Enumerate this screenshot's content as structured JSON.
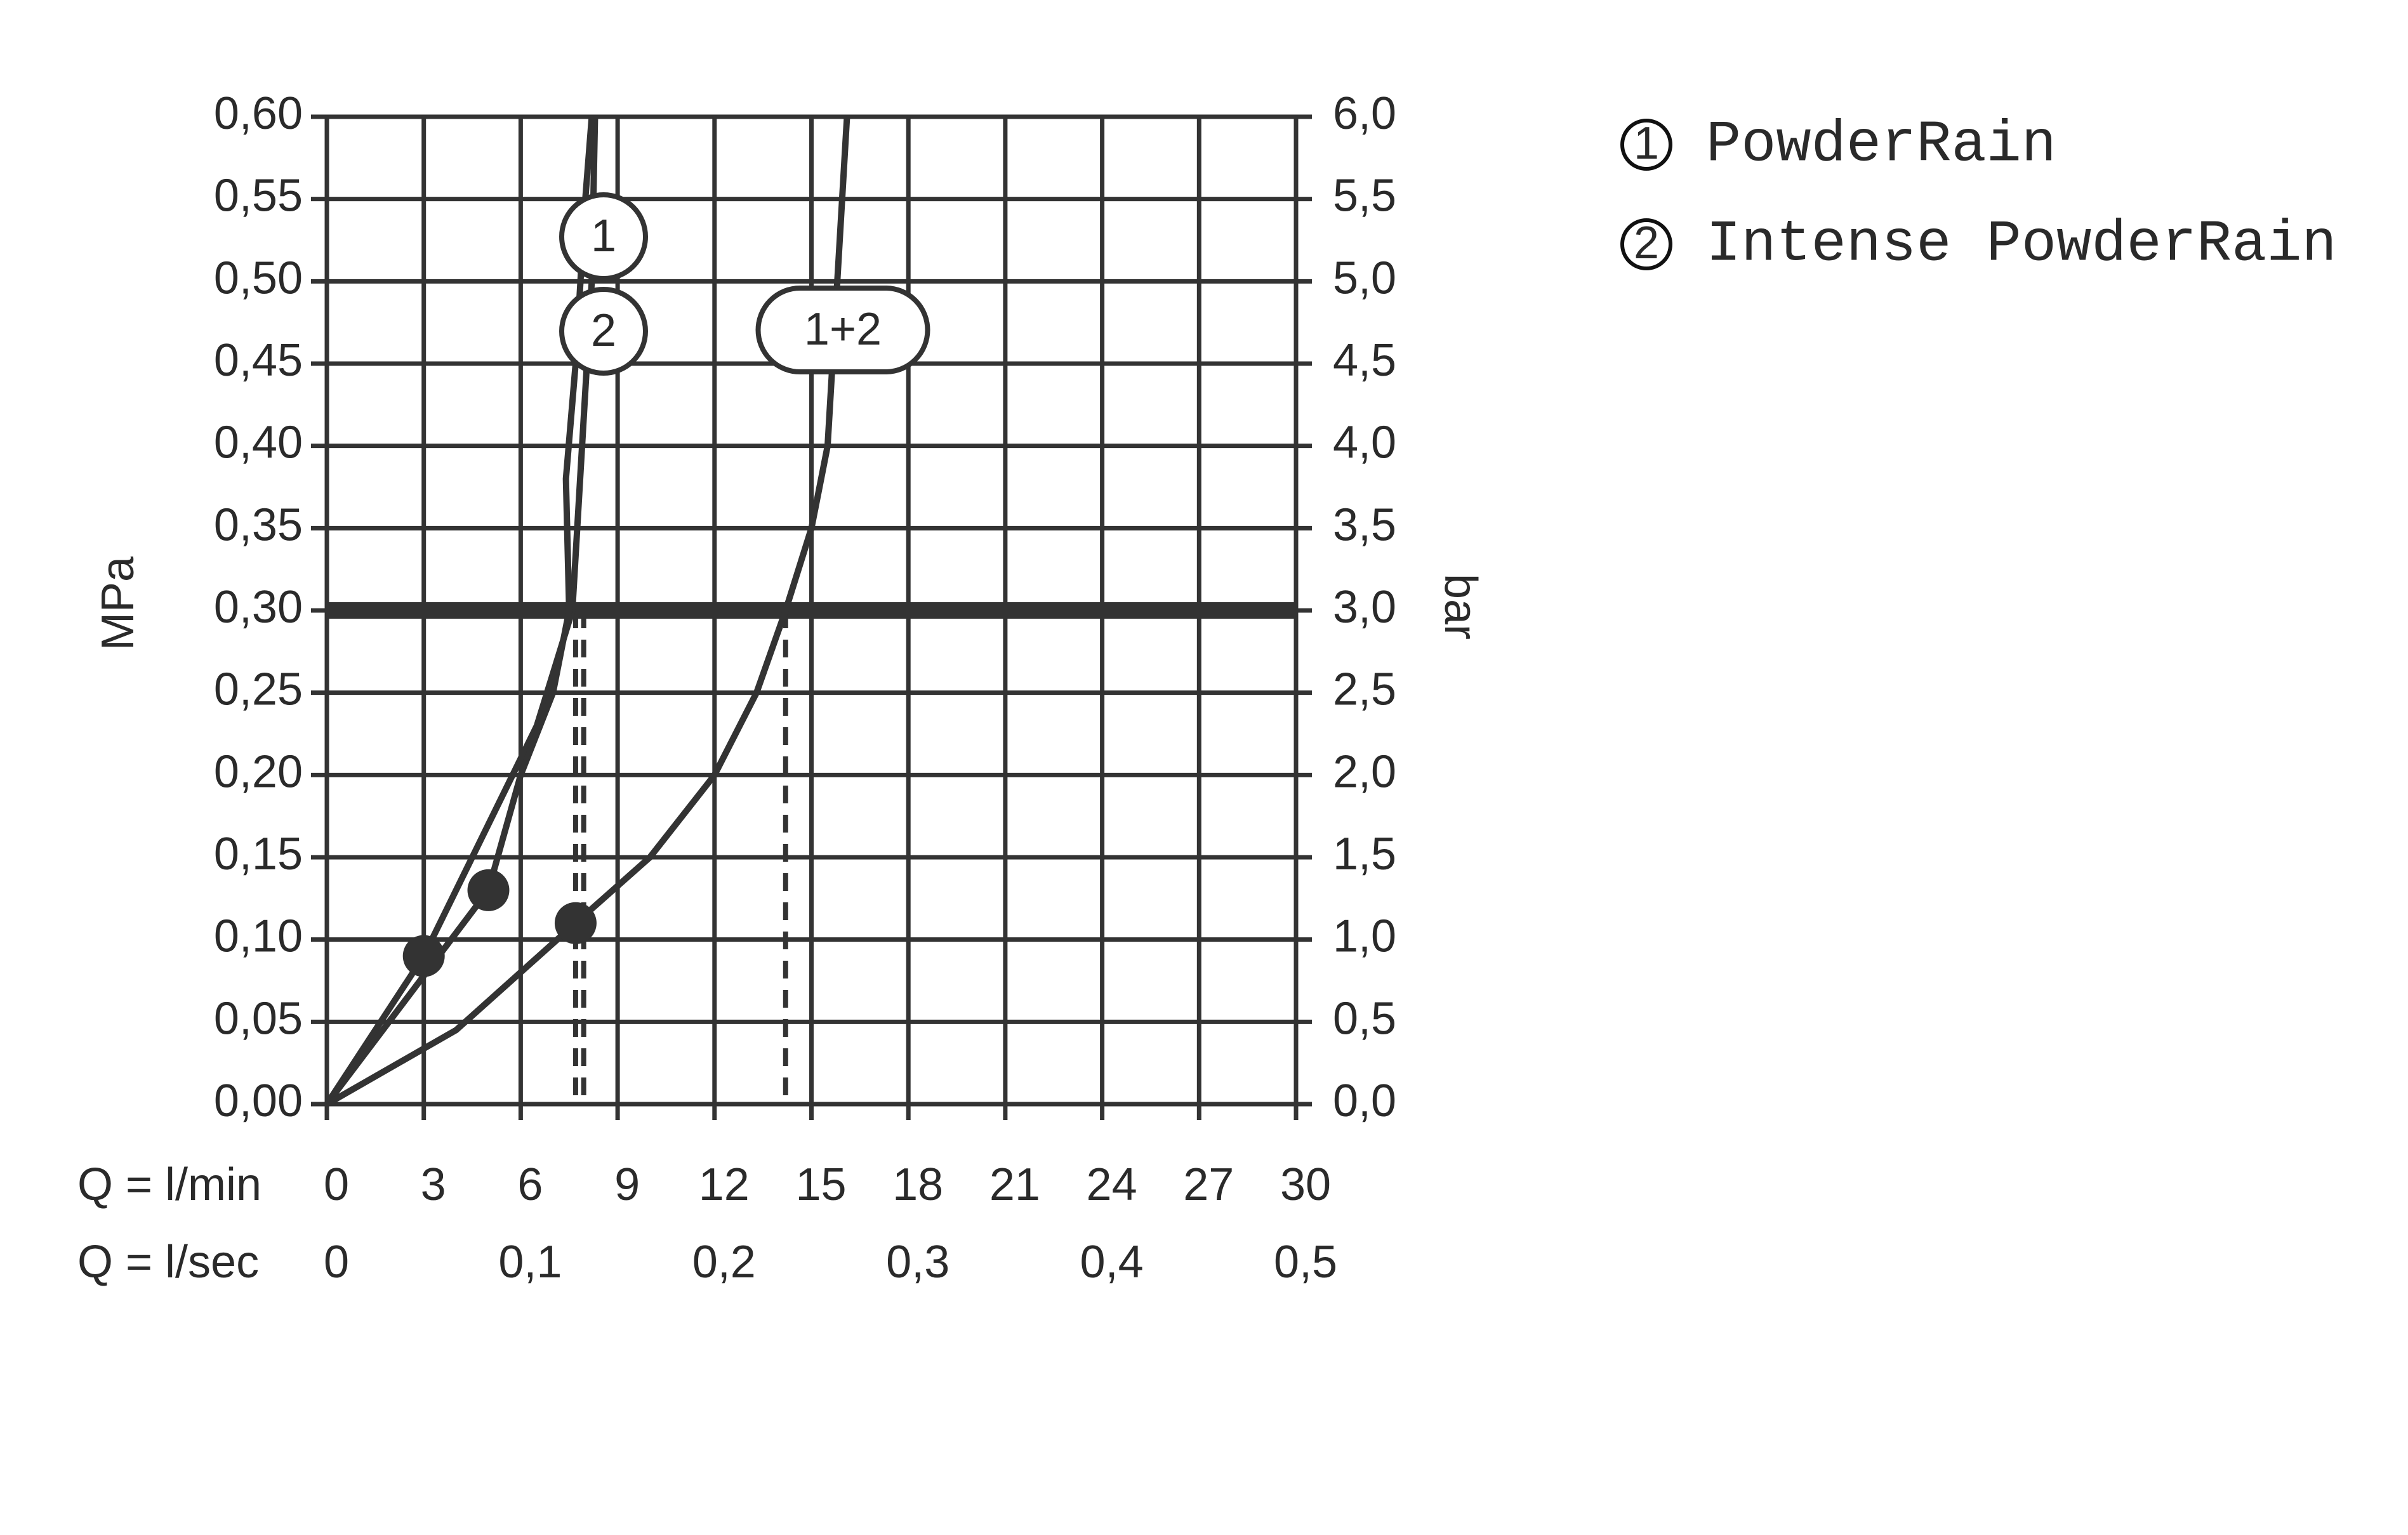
{
  "chart_data": {
    "type": "line",
    "y_axis_title": "MPa",
    "y2_axis_title": "bar",
    "x_axis_title": "Q = l/min",
    "x2_axis_title": "Q = l/sec",
    "xlim": [
      0,
      30
    ],
    "xticks": [
      0,
      3,
      6,
      9,
      12,
      15,
      18,
      21,
      24,
      27,
      30
    ],
    "x2lim": [
      0,
      0.5
    ],
    "x2ticks": [
      0,
      {
        "value": 0.1,
        "label": "0,1"
      },
      {
        "value": 0.2,
        "label": "0,2"
      },
      {
        "value": 0.3,
        "label": "0,3"
      },
      {
        "value": 0.4,
        "label": "0,4"
      },
      {
        "value": 0.5,
        "label": "0,5"
      }
    ],
    "ylim": [
      0,
      0.6
    ],
    "yticks": [
      {
        "value": 0,
        "label": "0,00"
      },
      {
        "value": 0.05,
        "label": "0,05"
      },
      {
        "value": 0.1,
        "label": "0,10"
      },
      {
        "value": 0.15,
        "label": "0,15"
      },
      {
        "value": 0.2,
        "label": "0,20"
      },
      {
        "value": 0.25,
        "label": "0,25"
      },
      {
        "value": 0.3,
        "label": "0,30"
      },
      {
        "value": 0.35,
        "label": "0,35"
      },
      {
        "value": 0.4,
        "label": "0,40"
      },
      {
        "value": 0.45,
        "label": "0,45"
      },
      {
        "value": 0.5,
        "label": "0,50"
      },
      {
        "value": 0.55,
        "label": "0,55"
      },
      {
        "value": 0.6,
        "label": "0,60"
      }
    ],
    "y2lim": [
      0,
      6
    ],
    "y2ticks": [
      {
        "value": 0,
        "label": "0,0"
      },
      {
        "value": 0.5,
        "label": "0,5"
      },
      {
        "value": 1,
        "label": "1,0"
      },
      {
        "value": 1.5,
        "label": "1,5"
      },
      {
        "value": 2,
        "label": "2,0"
      },
      {
        "value": 2.5,
        "label": "2,5"
      },
      {
        "value": 3,
        "label": "3,0"
      },
      {
        "value": 3.5,
        "label": "3,5"
      },
      {
        "value": 4,
        "label": "4,0"
      },
      {
        "value": 4.5,
        "label": "4,5"
      },
      {
        "value": 5,
        "label": "5,0"
      },
      {
        "value": 5.5,
        "label": "5,5"
      },
      {
        "value": 6,
        "label": "6,0"
      }
    ],
    "grid": true,
    "color": "#333333",
    "series": [
      {
        "name": "PowderRain",
        "tag": "1",
        "x": [
          0,
          3,
          5,
          6.5,
          7.6,
          7.9,
          8.2,
          8.3
        ],
        "y": [
          0,
          0.09,
          0.17,
          0.23,
          0.3,
          0.4,
          0.5,
          0.6
        ]
      },
      {
        "name": "Intense PowderRain",
        "tag": "2",
        "x": [
          0,
          5,
          6,
          7,
          7.5,
          7.4,
          7.7,
          8.0,
          8.2
        ],
        "y": [
          0,
          0.13,
          0.2,
          0.25,
          0.3,
          0.38,
          0.45,
          0.55,
          0.6
        ]
      },
      {
        "tag": "1+2",
        "x": [
          0,
          4,
          7.7,
          10,
          12,
          13.3,
          14.2,
          15,
          15.5,
          15.8,
          16.1
        ],
        "y": [
          0,
          0.045,
          0.11,
          0.15,
          0.2,
          0.25,
          0.3,
          0.35,
          0.4,
          0.5,
          0.6
        ]
      }
    ],
    "points": {
      "x": [
        3,
        5,
        7.7
      ],
      "y": [
        0.09,
        0.13,
        0.11
      ]
    },
    "reference_y": 0.3,
    "reference_x": [
      7.7,
      7.95,
      14.2
    ]
  }
}
